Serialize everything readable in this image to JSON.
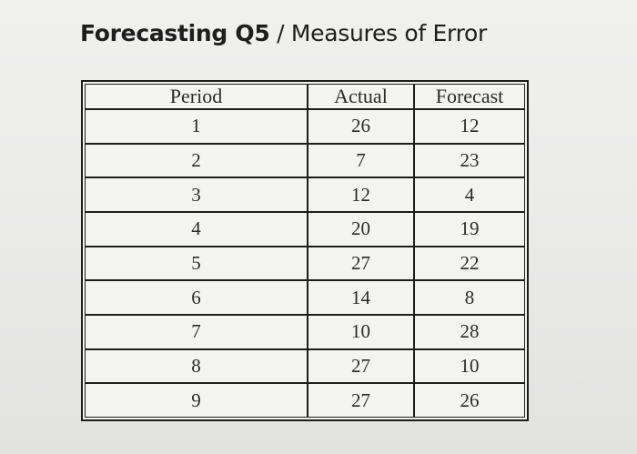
{
  "title": {
    "bold_part": "Forecasting Q5",
    "rest": " / Measures of Error"
  },
  "table": {
    "headers": [
      "Period",
      "Actual",
      "Forecast"
    ],
    "rows": [
      [
        "1",
        "26",
        "12"
      ],
      [
        "2",
        "7",
        "23"
      ],
      [
        "3",
        "12",
        "4"
      ],
      [
        "4",
        "20",
        "19"
      ],
      [
        "5",
        "27",
        "22"
      ],
      [
        "6",
        "14",
        "8"
      ],
      [
        "7",
        "10",
        "28"
      ],
      [
        "8",
        "27",
        "10"
      ],
      [
        "9",
        "27",
        "26"
      ]
    ]
  }
}
